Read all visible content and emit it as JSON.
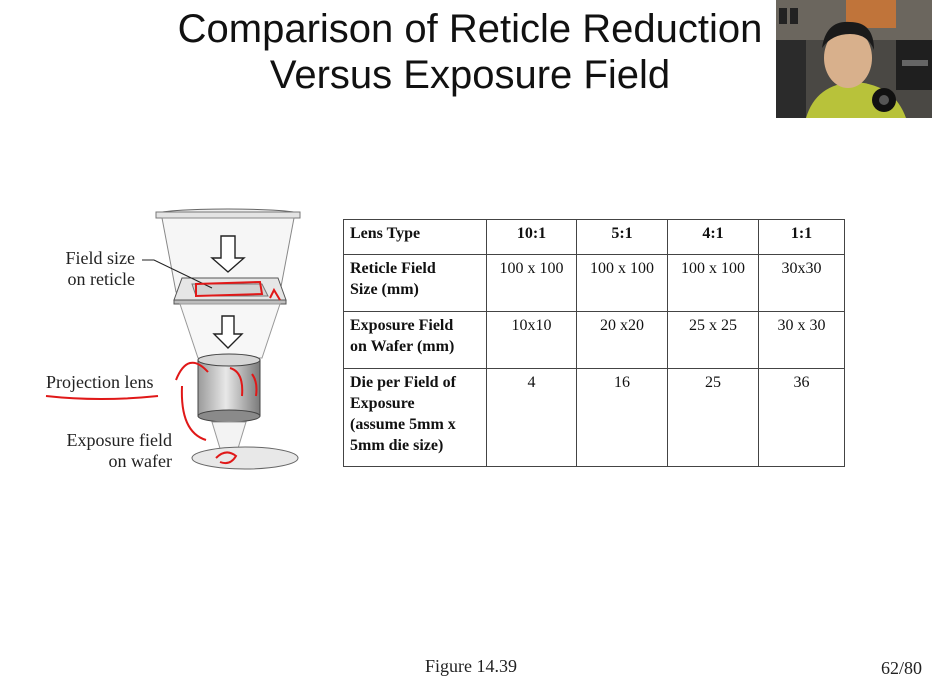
{
  "slide": {
    "title_line1": "Comparison of Reticle Reduction",
    "title_line2": "Versus Exposure Field",
    "figure_caption": "Figure 14.39",
    "page_number": "62/80"
  },
  "diagram": {
    "label_field_size_line1": "Field size",
    "label_field_size_line2": "on reticle",
    "label_projection_lens": "Projection lens",
    "label_exposure_field_line1": "Exposure field",
    "label_exposure_field_line2": "on wafer"
  },
  "table": {
    "headers": [
      "Lens Type",
      "10:1",
      "5:1",
      "4:1",
      "1:1"
    ],
    "rows": [
      {
        "label_lines": [
          "Reticle Field",
          "Size (mm)"
        ],
        "values": [
          "100 x 100",
          "100 x 100",
          "100 x 100",
          "30x30"
        ]
      },
      {
        "label_lines": [
          "Exposure Field",
          "on Wafer (mm)"
        ],
        "values": [
          "10x10",
          "20 x20",
          "25 x 25",
          "30 x 30"
        ]
      },
      {
        "label_lines": [
          "Die per Field of",
          "Exposure",
          "(assume 5mm x",
          "5mm die size)"
        ],
        "values": [
          "4",
          "16",
          "25",
          "36"
        ]
      }
    ]
  },
  "colors": {
    "annotation": "#e01818",
    "text": "#111111"
  }
}
